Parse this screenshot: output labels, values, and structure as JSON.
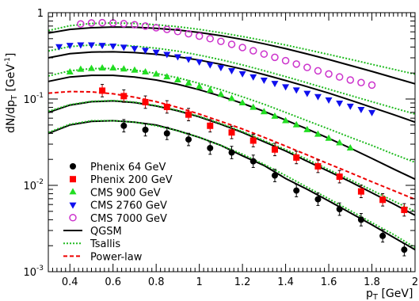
{
  "chart_data": {
    "type": "scatter",
    "xlabel_main": "p",
    "xlabel_sub": "T",
    "xlabel_unit": " [GeV]",
    "ylabel_main": "dN/dp",
    "ylabel_sub": "T",
    "ylabel_unit": " [GeV",
    "ylabel_sup": "-1",
    "ylabel_close": "]",
    "xlim": [
      0.3,
      2.0
    ],
    "ylim": [
      0.001,
      1
    ],
    "yscale": "log",
    "x_ticks": [
      0.4,
      0.6,
      0.8,
      1,
      1.2,
      1.4,
      1.6,
      1.8,
      2
    ],
    "x_tick_labels": [
      "0.4",
      "0.6",
      "0.8",
      "1",
      "1.2",
      "1.4",
      "1.6",
      "1.8",
      "2"
    ],
    "y_ticks": [
      1,
      0.1,
      0.01,
      0.001
    ],
    "y_tick_labels": [
      {
        "base": "1",
        "exp": ""
      },
      {
        "base": "10",
        "exp": "-1"
      },
      {
        "base": "10",
        "exp": "-2"
      },
      {
        "base": "10",
        "exp": "-3"
      }
    ],
    "legend_position": "bottom-left",
    "legend": [
      {
        "label": "Phenix 64 GeV",
        "kind": "marker",
        "marker": "circle",
        "color": "#000000"
      },
      {
        "label": "Phenix 200 GeV",
        "kind": "marker",
        "marker": "square",
        "color": "#ff0000"
      },
      {
        "label": "CMS 900 GeV",
        "kind": "marker",
        "marker": "triangle-up",
        "color": "#22dd22"
      },
      {
        "label": "CMS 2760 GeV",
        "kind": "marker",
        "marker": "triangle-down",
        "color": "#1010ee"
      },
      {
        "label": "CMS 7000 GeV",
        "kind": "marker",
        "marker": "open-circle",
        "color": "#cc33cc"
      },
      {
        "label": "QGSM",
        "kind": "line",
        "style": "solid",
        "color": "#000000"
      },
      {
        "label": "Tsallis",
        "kind": "line",
        "style": "dotted",
        "color": "#22bb22"
      },
      {
        "label": "Power-law",
        "kind": "line",
        "style": "dashed",
        "color": "#ee0000"
      }
    ],
    "series": [
      {
        "name": "Phenix 64 GeV",
        "marker": "circle",
        "color": "#000000",
        "error_bars": true,
        "x": [
          0.65,
          0.75,
          0.85,
          0.95,
          1.05,
          1.15,
          1.25,
          1.35,
          1.45,
          1.55,
          1.65,
          1.75,
          1.85,
          1.95
        ],
        "y": [
          0.049,
          0.044,
          0.04,
          0.034,
          0.027,
          0.024,
          0.019,
          0.013,
          0.0087,
          0.0069,
          0.0053,
          0.004,
          0.0026,
          0.0018
        ]
      },
      {
        "name": "Phenix 200 GeV",
        "marker": "square",
        "color": "#ff0000",
        "error_bars": true,
        "x": [
          0.55,
          0.65,
          0.75,
          0.85,
          0.95,
          1.05,
          1.15,
          1.25,
          1.35,
          1.45,
          1.55,
          1.65,
          1.75,
          1.85,
          1.95
        ],
        "y": [
          0.125,
          0.108,
          0.092,
          0.081,
          0.066,
          0.049,
          0.041,
          0.033,
          0.026,
          0.021,
          0.0166,
          0.0126,
          0.0085,
          0.0068,
          0.0052
        ]
      },
      {
        "name": "CMS 900 GeV",
        "marker": "triangle-up",
        "color": "#22dd22",
        "x": [
          0.4,
          0.45,
          0.5,
          0.55,
          0.6,
          0.65,
          0.7,
          0.75,
          0.8,
          0.85,
          0.9,
          0.95,
          1.0,
          1.05,
          1.1,
          1.15,
          1.2,
          1.25,
          1.3,
          1.35,
          1.4,
          1.45,
          1.5,
          1.55,
          1.6,
          1.65,
          1.7
        ],
        "y": [
          0.205,
          0.22,
          0.225,
          0.228,
          0.228,
          0.222,
          0.215,
          0.205,
          0.194,
          0.18,
          0.166,
          0.152,
          0.139,
          0.126,
          0.113,
          0.101,
          0.09,
          0.08,
          0.071,
          0.063,
          0.056,
          0.05,
          0.044,
          0.039,
          0.035,
          0.031,
          0.027
        ]
      },
      {
        "name": "CMS 2760 GeV",
        "marker": "triangle-down",
        "color": "#1010ee",
        "x": [
          0.35,
          0.4,
          0.45,
          0.5,
          0.55,
          0.6,
          0.65,
          0.7,
          0.75,
          0.8,
          0.85,
          0.9,
          0.95,
          1.0,
          1.05,
          1.1,
          1.15,
          1.2,
          1.25,
          1.3,
          1.35,
          1.4,
          1.45,
          1.5,
          1.55,
          1.6,
          1.65,
          1.7,
          1.75,
          1.8
        ],
        "y": [
          0.405,
          0.42,
          0.425,
          0.425,
          0.42,
          0.412,
          0.4,
          0.385,
          0.368,
          0.35,
          0.33,
          0.31,
          0.29,
          0.27,
          0.25,
          0.232,
          0.214,
          0.197,
          0.181,
          0.166,
          0.152,
          0.139,
          0.128,
          0.117,
          0.107,
          0.098,
          0.09,
          0.083,
          0.076,
          0.07
        ]
      },
      {
        "name": "CMS 7000 GeV",
        "marker": "open-circle",
        "color": "#cc33cc",
        "x": [
          0.45,
          0.5,
          0.55,
          0.6,
          0.65,
          0.7,
          0.75,
          0.8,
          0.85,
          0.9,
          0.95,
          1.0,
          1.05,
          1.1,
          1.15,
          1.2,
          1.25,
          1.3,
          1.35,
          1.4,
          1.45,
          1.5,
          1.55,
          1.6,
          1.65,
          1.7,
          1.75,
          1.8
        ],
        "y": [
          0.74,
          0.76,
          0.765,
          0.76,
          0.745,
          0.725,
          0.7,
          0.67,
          0.64,
          0.605,
          0.57,
          0.535,
          0.5,
          0.465,
          0.43,
          0.395,
          0.362,
          0.332,
          0.304,
          0.278,
          0.254,
          0.232,
          0.212,
          0.195,
          0.18,
          0.166,
          0.155,
          0.145
        ]
      },
      {
        "name": "QGSM",
        "line": "solid",
        "color": "#000000",
        "curves": [
          {
            "x": [
              0.3,
              0.4,
              0.5,
              0.6,
              0.7,
              0.8,
              0.9,
              1.0,
              1.1,
              1.2,
              1.3,
              1.4,
              1.5,
              1.6,
              1.7,
              1.8,
              1.9,
              2.0
            ],
            "y": [
              0.04,
              0.05,
              0.055,
              0.056,
              0.054,
              0.05,
              0.043,
              0.036,
              0.029,
              0.022,
              0.017,
              0.012,
              0.009,
              0.0066,
              0.0048,
              0.0035,
              0.0025,
              0.0018
            ]
          },
          {
            "x": [
              0.3,
              0.4,
              0.5,
              0.6,
              0.7,
              0.8,
              0.9,
              1.0,
              1.1,
              1.2,
              1.3,
              1.4,
              1.5,
              1.6,
              1.7,
              1.8,
              1.9,
              2.0
            ],
            "y": [
              0.07,
              0.085,
              0.093,
              0.095,
              0.091,
              0.083,
              0.073,
              0.062,
              0.051,
              0.041,
              0.032,
              0.025,
              0.019,
              0.0145,
              0.011,
              0.0082,
              0.0061,
              0.0045
            ]
          },
          {
            "x": [
              0.3,
              0.4,
              0.5,
              0.6,
              0.7,
              0.8,
              0.9,
              1.0,
              1.1,
              1.2,
              1.3,
              1.4,
              1.5,
              1.6,
              1.7,
              1.8,
              1.9,
              2.0
            ],
            "y": [
              0.16,
              0.18,
              0.188,
              0.188,
              0.18,
              0.166,
              0.148,
              0.128,
              0.108,
              0.089,
              0.072,
              0.057,
              0.045,
              0.035,
              0.027,
              0.0205,
              0.0155,
              0.0118
            ]
          },
          {
            "x": [
              0.3,
              0.4,
              0.5,
              0.6,
              0.7,
              0.8,
              0.9,
              1.0,
              1.1,
              1.2,
              1.3,
              1.4,
              1.5,
              1.6,
              1.7,
              1.8,
              1.9,
              2.0
            ],
            "y": [
              0.3,
              0.335,
              0.35,
              0.352,
              0.345,
              0.33,
              0.308,
              0.282,
              0.252,
              0.222,
              0.192,
              0.164,
              0.139,
              0.117,
              0.097,
              0.08,
              0.066,
              0.054
            ]
          },
          {
            "x": [
              0.3,
              0.4,
              0.5,
              0.6,
              0.7,
              0.8,
              0.9,
              1.0,
              1.1,
              1.2,
              1.3,
              1.4,
              1.5,
              1.6,
              1.7,
              1.8,
              1.9,
              2.0
            ],
            "y": [
              0.58,
              0.64,
              0.67,
              0.682,
              0.678,
              0.66,
              0.63,
              0.59,
              0.542,
              0.49,
              0.436,
              0.383,
              0.333,
              0.287,
              0.245,
              0.209,
              0.177,
              0.15
            ]
          }
        ]
      },
      {
        "name": "Tsallis",
        "line": "dotted",
        "color": "#22bb22",
        "curves": [
          {
            "x": [
              0.3,
              0.4,
              0.5,
              0.6,
              0.7,
              0.8,
              0.9,
              1.0,
              1.1,
              1.2,
              1.3,
              1.4,
              1.5,
              1.6,
              1.7,
              1.8,
              1.9,
              2.0
            ],
            "y": [
              0.041,
              0.051,
              0.056,
              0.056,
              0.054,
              0.049,
              0.043,
              0.036,
              0.029,
              0.023,
              0.0175,
              0.013,
              0.0095,
              0.007,
              0.0051,
              0.0037,
              0.0027,
              0.0019
            ]
          },
          {
            "x": [
              0.3,
              0.4,
              0.5,
              0.6,
              0.7,
              0.8,
              0.9,
              1.0,
              1.1,
              1.2,
              1.3,
              1.4,
              1.5,
              1.6,
              1.7,
              1.8,
              1.9,
              2.0
            ],
            "y": [
              0.072,
              0.086,
              0.094,
              0.096,
              0.092,
              0.084,
              0.074,
              0.063,
              0.052,
              0.042,
              0.033,
              0.026,
              0.02,
              0.0152,
              0.0116,
              0.0088,
              0.0066,
              0.005
            ]
          },
          {
            "x": [
              0.3,
              0.4,
              0.5,
              0.6,
              0.7,
              0.8,
              0.9,
              1.0,
              1.1,
              1.2,
              1.3,
              1.4,
              1.5,
              1.6,
              1.7,
              1.8,
              1.9,
              2.0
            ],
            "y": [
              0.185,
              0.212,
              0.225,
              0.226,
              0.216,
              0.198,
              0.176,
              0.152,
              0.128,
              0.106,
              0.087,
              0.07,
              0.056,
              0.045,
              0.036,
              0.029,
              0.023,
              0.0185
            ]
          },
          {
            "x": [
              0.3,
              0.4,
              0.5,
              0.6,
              0.7,
              0.8,
              0.9,
              1.0,
              1.1,
              1.2,
              1.3,
              1.4,
              1.5,
              1.6,
              1.7,
              1.8,
              1.9,
              2.0
            ],
            "y": [
              0.36,
              0.405,
              0.422,
              0.422,
              0.41,
              0.388,
              0.358,
              0.322,
              0.285,
              0.248,
              0.213,
              0.182,
              0.154,
              0.13,
              0.11,
              0.093,
              0.079,
              0.067
            ]
          },
          {
            "x": [
              0.3,
              0.4,
              0.5,
              0.6,
              0.7,
              0.8,
              0.9,
              1.0,
              1.1,
              1.2,
              1.3,
              1.4,
              1.5,
              1.6,
              1.7,
              1.8,
              1.9,
              2.0
            ],
            "y": [
              0.62,
              0.705,
              0.75,
              0.76,
              0.75,
              0.725,
              0.688,
              0.64,
              0.586,
              0.53,
              0.475,
              0.422,
              0.373,
              0.328,
              0.288,
              0.252,
              0.221,
              0.194
            ]
          }
        ]
      },
      {
        "name": "Power-law",
        "line": "dashed",
        "color": "#ee0000",
        "curves": [
          {
            "x": [
              0.3,
              0.4,
              0.5,
              0.6,
              0.7,
              0.8,
              0.9,
              1.0,
              1.1,
              1.2,
              1.3,
              1.4,
              1.5,
              1.6,
              1.7,
              1.8,
              1.9,
              2.0
            ],
            "y": [
              0.117,
              0.122,
              0.121,
              0.115,
              0.105,
              0.093,
              0.08,
              0.067,
              0.055,
              0.045,
              0.036,
              0.0285,
              0.0225,
              0.0177,
              0.014,
              0.011,
              0.0087,
              0.0069
            ]
          }
        ]
      }
    ]
  }
}
